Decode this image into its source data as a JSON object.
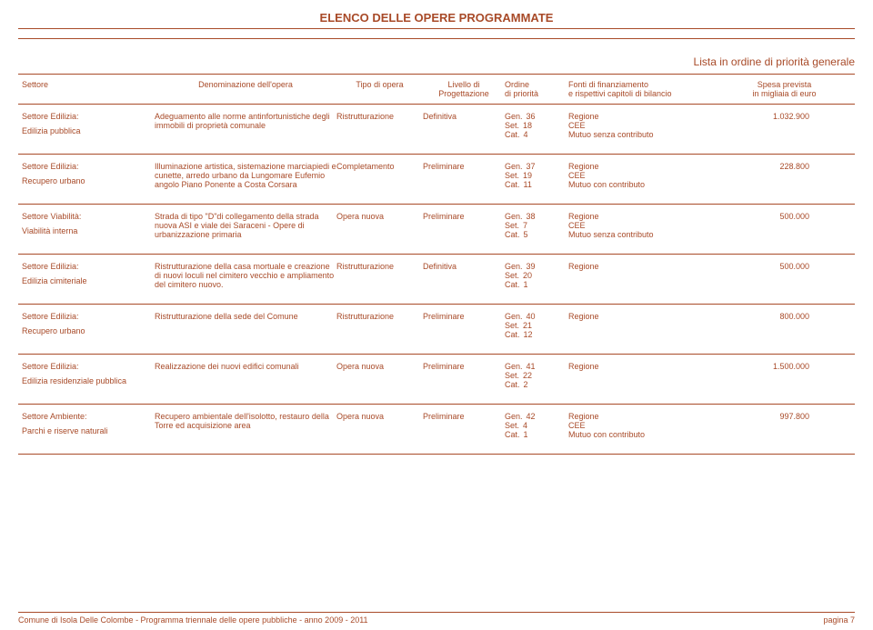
{
  "color": "#a84a28",
  "page_title": "ELENCO DELLE OPERE PROGRAMMATE",
  "subtitle": "Lista in ordine di priorità generale",
  "headers": {
    "settore": "Settore",
    "denom": "Denominazione dell'opera",
    "tipo": "Tipo di opera",
    "livello_l1": "Livello di",
    "livello_l2": "Progettazione",
    "ordine_l1": "Ordine",
    "ordine_l2": "di priorità",
    "fonti_l1": "Fonti di finanziamento",
    "fonti_l2": "e rispettivi capitoli di bilancio",
    "spesa_l1": "Spesa prevista",
    "spesa_l2": "in migliaia di euro"
  },
  "rows": [
    {
      "settore_l1": "Settore Edilizia:",
      "settore_l2": "Edilizia pubblica",
      "denom": "Adeguamento alle norme antinfortunistiche degli immobili di proprietà comunale",
      "tipo": "Ristrutturazione",
      "livello": "Definitiva",
      "ord_gen": "36",
      "ord_set": "18",
      "ord_cat": "4",
      "fonti": [
        "Regione",
        "CEE",
        "Mutuo senza contributo"
      ],
      "spesa": "1.032.900"
    },
    {
      "settore_l1": "Settore Edilizia:",
      "settore_l2": "Recupero urbano",
      "denom": "Illuminazione artistica, sistemazione marciapiedi e cunette, arredo urbano da Lungomare Eufemio angolo Piano Ponente a Costa Corsara",
      "tipo": "Completamento",
      "livello": "Preliminare",
      "ord_gen": "37",
      "ord_set": "19",
      "ord_cat": "11",
      "fonti": [
        "Regione",
        "CEE",
        "Mutuo con contributo"
      ],
      "spesa": "228.800"
    },
    {
      "settore_l1": "Settore Viabilità:",
      "settore_l2": "Viabilità interna",
      "denom": "Strada di tipo \"D\"di collegamento della strada nuova ASI e viale dei Saraceni - Opere di urbanizzazione primaria",
      "tipo": "Opera nuova",
      "livello": "Preliminare",
      "ord_gen": "38",
      "ord_set": "7",
      "ord_cat": "5",
      "fonti": [
        "Regione",
        "CEE",
        "Mutuo senza contributo"
      ],
      "spesa": "500.000"
    },
    {
      "settore_l1": "Settore Edilizia:",
      "settore_l2": "Edilizia cimiteriale",
      "denom": "Ristrutturazione della casa mortuale e creazione di nuovi loculi nel cimitero vecchio e ampliamento del cimitero nuovo.",
      "tipo": "Ristrutturazione",
      "livello": "Definitiva",
      "ord_gen": "39",
      "ord_set": "20",
      "ord_cat": "1",
      "fonti": [
        "Regione"
      ],
      "spesa": "500.000"
    },
    {
      "settore_l1": "Settore Edilizia:",
      "settore_l2": "Recupero urbano",
      "denom": "Ristrutturazione della sede del Comune",
      "tipo": "Ristrutturazione",
      "livello": "Preliminare",
      "ord_gen": "40",
      "ord_set": "21",
      "ord_cat": "12",
      "fonti": [
        "Regione"
      ],
      "spesa": "800.000"
    },
    {
      "settore_l1": "Settore Edilizia:",
      "settore_l2": "Edilizia residenziale pubblica",
      "denom": "Realizzazione dei nuovi edifici comunali",
      "tipo": "Opera nuova",
      "livello": "Preliminare",
      "ord_gen": "41",
      "ord_set": "22",
      "ord_cat": "2",
      "fonti": [
        "Regione"
      ],
      "spesa": "1.500.000"
    },
    {
      "settore_l1": "Settore Ambiente:",
      "settore_l2": "Parchi e riserve naturali",
      "denom": "Recupero ambientale dell'isolotto, restauro della Torre ed acquisizione area",
      "tipo": "Opera nuova",
      "livello": "Preliminare",
      "ord_gen": "42",
      "ord_set": "4",
      "ord_cat": "1",
      "fonti": [
        "Regione",
        "CEE",
        "Mutuo con contributo"
      ],
      "spesa": "997.800"
    }
  ],
  "ord_labels": {
    "gen": "Gen.",
    "set": "Set.",
    "cat": "Cat."
  },
  "footer_left": "Comune di Isola Delle Colombe - Programma triennale delle opere pubbliche - anno 2009 - 2011",
  "footer_right": "pagina 7"
}
